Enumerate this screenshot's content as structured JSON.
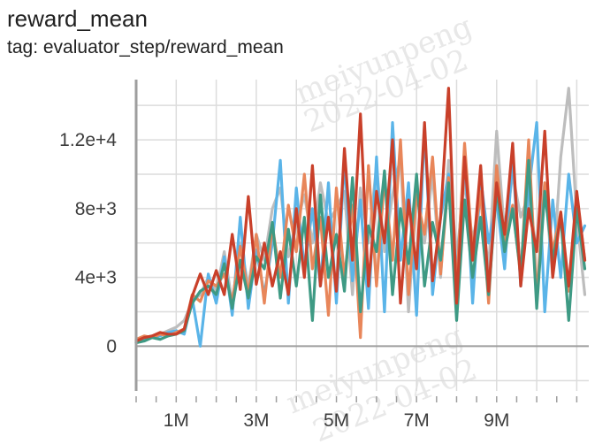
{
  "header": {
    "title": "reward_mean",
    "tag": "tag: evaluator_step/reward_mean"
  },
  "watermark": {
    "name": "meiyunpeng",
    "date": "2022-04-02"
  },
  "chart_data": {
    "type": "line",
    "title": "reward_mean",
    "xlabel": "",
    "ylabel": "",
    "xlim": [
      0,
      11300000
    ],
    "ylim": [
      -2600,
      15500
    ],
    "x_ticks": [
      1000000,
      3000000,
      5000000,
      7000000,
      9000000
    ],
    "x_tick_labels": [
      "1M",
      "3M",
      "5M",
      "7M",
      "9M"
    ],
    "y_ticks": [
      0,
      4000,
      8000,
      12000
    ],
    "y_tick_labels": [
      "0",
      "4e+3",
      "8e+3",
      "1.2e+4"
    ],
    "grid": true,
    "legend": "none",
    "series": [
      {
        "color": "#bdbdbd",
        "x": [
          0,
          200000,
          400000,
          600000,
          800000,
          1000000,
          1200000,
          1400000,
          1600000,
          1800000,
          2000000,
          2200000,
          2400000,
          2600000,
          2800000,
          3000000,
          3200000,
          3400000,
          3600000,
          3800000,
          4000000,
          4200000,
          4400000,
          4600000,
          4800000,
          5000000,
          5200000,
          5400000,
          5600000,
          5800000,
          6000000,
          6200000,
          6400000,
          6600000,
          6800000,
          7000000,
          7200000,
          7400000,
          7600000,
          7800000,
          8000000,
          8200000,
          8400000,
          8600000,
          8800000,
          9000000,
          9200000,
          9400000,
          9600000,
          9800000,
          10000000,
          10200000,
          10400000,
          10600000,
          10800000,
          11000000,
          11200000
        ],
        "y": [
          300,
          500,
          600,
          700,
          900,
          1100,
          1500,
          2600,
          3000,
          4000,
          3200,
          5500,
          2500,
          6000,
          3500,
          6500,
          5000,
          8000,
          9200,
          5200,
          7000,
          8800,
          6000,
          9500,
          7200,
          8000,
          9000,
          3000,
          9200,
          6000,
          10500,
          5500,
          8800,
          11000,
          2000,
          9000,
          6000,
          10000,
          4000,
          10800,
          5200,
          9500,
          6200,
          8500,
          4500,
          12500,
          6500,
          10000,
          7500,
          8800,
          5500,
          9500,
          4000,
          11000,
          15000,
          7500,
          3000
        ]
      },
      {
        "color": "#5ab4e8",
        "x": [
          0,
          200000,
          400000,
          600000,
          800000,
          1000000,
          1200000,
          1400000,
          1600000,
          1800000,
          2000000,
          2200000,
          2400000,
          2600000,
          2800000,
          3000000,
          3200000,
          3400000,
          3600000,
          3800000,
          4000000,
          4200000,
          4400000,
          4600000,
          4800000,
          5000000,
          5200000,
          5400000,
          5600000,
          5800000,
          6000000,
          6200000,
          6400000,
          6600000,
          6800000,
          7000000,
          7200000,
          7400000,
          7600000,
          7800000,
          8000000,
          8200000,
          8400000,
          8600000,
          8800000,
          9000000,
          9200000,
          9400000,
          9600000,
          9800000,
          10000000,
          10200000,
          10400000,
          10600000,
          10800000,
          11000000,
          11200000
        ],
        "y": [
          200,
          400,
          500,
          600,
          800,
          900,
          700,
          2800,
          0,
          4200,
          2500,
          5200,
          1800,
          7500,
          2200,
          5600,
          3000,
          6000,
          10800,
          2500,
          9200,
          4500,
          8000,
          3500,
          9500,
          2500,
          10800,
          3800,
          8500,
          2200,
          11000,
          2000,
          13000,
          5000,
          9500,
          1800,
          12800,
          3000,
          7500,
          10000,
          4000,
          11200,
          2500,
          9800,
          6000,
          8500,
          4500,
          11000,
          3500,
          9000,
          13000,
          2000,
          8500,
          4000,
          10000,
          6000,
          7000
        ]
      },
      {
        "color": "#e8865a",
        "x": [
          0,
          200000,
          400000,
          600000,
          800000,
          1000000,
          1200000,
          1400000,
          1600000,
          1800000,
          2000000,
          2200000,
          2400000,
          2600000,
          2800000,
          3000000,
          3200000,
          3400000,
          3600000,
          3800000,
          4000000,
          4200000,
          4400000,
          4600000,
          4800000,
          5000000,
          5200000,
          5400000,
          5600000,
          5800000,
          6000000,
          6200000,
          6400000,
          6600000,
          6800000,
          7000000,
          7200000,
          7400000,
          7600000,
          7800000,
          8000000,
          8200000,
          8400000,
          8600000,
          8800000,
          9000000,
          9200000,
          9400000,
          9600000,
          9800000,
          10000000,
          10200000,
          10400000,
          10600000,
          10800000,
          11000000,
          11200000
        ],
        "y": [
          400,
          600,
          500,
          700,
          600,
          800,
          1000,
          3000,
          2600,
          3800,
          3500,
          4200,
          2600,
          5800,
          3000,
          6500,
          2500,
          7000,
          4000,
          8200,
          5500,
          10000,
          4500,
          7500,
          1800,
          9200,
          4000,
          8200,
          500,
          10500,
          3500,
          9800,
          5000,
          12000,
          3000,
          8800,
          6500,
          11000,
          4200,
          9800,
          3500,
          11800,
          5500,
          9000,
          2500,
          10500,
          6000,
          8200,
          4000,
          12000,
          2800,
          9500,
          5500,
          7800,
          3200,
          8800,
          5000
        ]
      },
      {
        "color": "#3e9a84",
        "x": [
          0,
          200000,
          400000,
          600000,
          800000,
          1000000,
          1200000,
          1400000,
          1600000,
          1800000,
          2000000,
          2200000,
          2400000,
          2600000,
          2800000,
          3000000,
          3200000,
          3400000,
          3600000,
          3800000,
          4000000,
          4200000,
          4400000,
          4600000,
          4800000,
          5000000,
          5200000,
          5400000,
          5600000,
          5800000,
          6000000,
          6200000,
          6400000,
          6600000,
          6800000,
          7000000,
          7200000,
          7400000,
          7600000,
          7800000,
          8000000,
          8200000,
          8400000,
          8600000,
          8800000,
          9000000,
          9200000,
          9400000,
          9600000,
          9800000,
          10000000,
          10200000,
          10400000,
          10600000,
          10800000,
          11000000,
          11200000
        ],
        "y": [
          200,
          300,
          500,
          400,
          600,
          700,
          900,
          2500,
          3200,
          3500,
          3000,
          4800,
          2200,
          5000,
          2800,
          5200,
          4500,
          7200,
          2800,
          6800,
          3500,
          7500,
          1500,
          8800,
          4000,
          6500,
          3200,
          9800,
          2000,
          7000,
          5500,
          10200,
          3000,
          8000,
          4800,
          10000,
          3500,
          7200,
          5000,
          9500,
          1500,
          8500,
          4000,
          7500,
          3000,
          9200,
          5500,
          8000,
          4200,
          10800,
          2200,
          9000,
          5000,
          7500,
          1500,
          8000,
          4500
        ]
      },
      {
        "color": "#c9402a",
        "x": [
          0,
          200000,
          400000,
          600000,
          800000,
          1000000,
          1200000,
          1400000,
          1600000,
          1800000,
          2000000,
          2200000,
          2400000,
          2600000,
          2800000,
          3000000,
          3200000,
          3400000,
          3600000,
          3800000,
          4000000,
          4200000,
          4400000,
          4600000,
          4800000,
          5000000,
          5200000,
          5400000,
          5600000,
          5800000,
          6000000,
          6200000,
          6400000,
          6600000,
          6800000,
          7000000,
          7200000,
          7400000,
          7600000,
          7800000,
          8000000,
          8200000,
          8400000,
          8600000,
          8800000,
          9000000,
          9200000,
          9400000,
          9600000,
          9800000,
          10000000,
          10200000,
          10400000,
          10600000,
          10800000,
          11000000,
          11200000
        ],
        "y": [
          300,
          500,
          600,
          800,
          700,
          700,
          1000,
          2900,
          4200,
          3000,
          4400,
          3000,
          6500,
          3300,
          8700,
          3600,
          6000,
          3500,
          5500,
          3000,
          8000,
          4000,
          10500,
          3500,
          7500,
          3200,
          11500,
          5000,
          13500,
          3500,
          9000,
          6000,
          12000,
          2500,
          8500,
          4500,
          13000,
          3800,
          7500,
          15000,
          2500,
          11000,
          5000,
          10500,
          3200,
          9500,
          6500,
          11800,
          3500,
          8000,
          5500,
          12500,
          4000,
          7800,
          3500,
          9000,
          5000
        ]
      }
    ]
  }
}
